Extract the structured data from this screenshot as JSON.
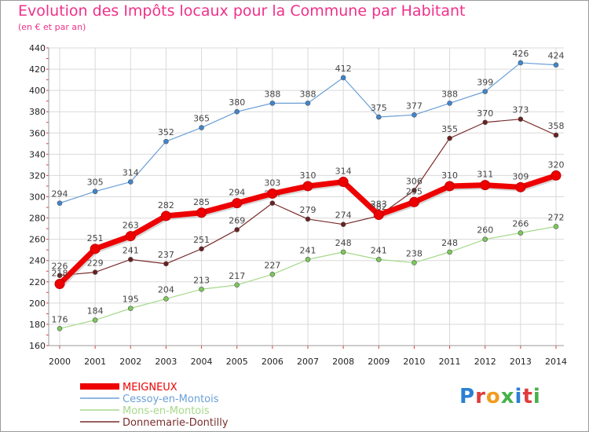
{
  "title": "Evolution des Impôts locaux pour la Commune par Habitant",
  "subtitle": "(en € et par an)",
  "logo": {
    "text": "Proxiti",
    "colors": [
      "#2a7fd4",
      "#e03c3c",
      "#f39b1e",
      "#46b04a",
      "#2a7fd4",
      "#e03c3c",
      "#46b04a"
    ]
  },
  "chart_data": {
    "type": "line",
    "title": "Evolution des Impôts locaux pour la Commune par Habitant",
    "subtitle": "(en € et par an)",
    "x": [
      "2000",
      "2001",
      "2002",
      "2003",
      "2004",
      "2005",
      "2006",
      "2007",
      "2008",
      "2009",
      "2010",
      "2011",
      "2012",
      "2013",
      "2014"
    ],
    "ylim": [
      160,
      440
    ],
    "yticks": [
      160,
      180,
      200,
      220,
      240,
      260,
      280,
      300,
      320,
      340,
      360,
      380,
      400,
      420,
      440
    ],
    "grid": true,
    "legend_position": "bottom-left",
    "series": [
      {
        "name": "Cessoy-en-Montois",
        "color": "#6a9fd6",
        "marker": "#3f85cf",
        "width": 1.2,
        "radius": 3,
        "values": [
          294,
          305,
          314,
          352,
          365,
          380,
          388,
          388,
          412,
          375,
          377,
          388,
          399,
          426,
          424
        ]
      },
      {
        "name": "Mons-en-Montois",
        "color": "#a6d98a",
        "marker": "#7bc95a",
        "width": 1.2,
        "radius": 3,
        "values": [
          176,
          184,
          195,
          204,
          213,
          217,
          227,
          241,
          248,
          241,
          238,
          248,
          260,
          266,
          272
        ]
      },
      {
        "name": "Donnemarie-Dontilly",
        "color": "#7a2c2c",
        "marker": "#6b2020",
        "width": 1.2,
        "radius": 3,
        "values": [
          226,
          229,
          241,
          237,
          251,
          269,
          294,
          279,
          274,
          282,
          306,
          355,
          370,
          373,
          358
        ]
      },
      {
        "name": "MEIGNEUX",
        "color": "#ee0000",
        "marker": "#ee0000",
        "width": 7,
        "radius": 6,
        "values": [
          218,
          251,
          263,
          282,
          285,
          294,
          303,
          310,
          314,
          283,
          295,
          310,
          311,
          309,
          320
        ]
      }
    ],
    "legend_order": [
      "MEIGNEUX",
      "Cessoy-en-Montois",
      "Mons-en-Montois",
      "Donnemarie-Dontilly"
    ]
  }
}
